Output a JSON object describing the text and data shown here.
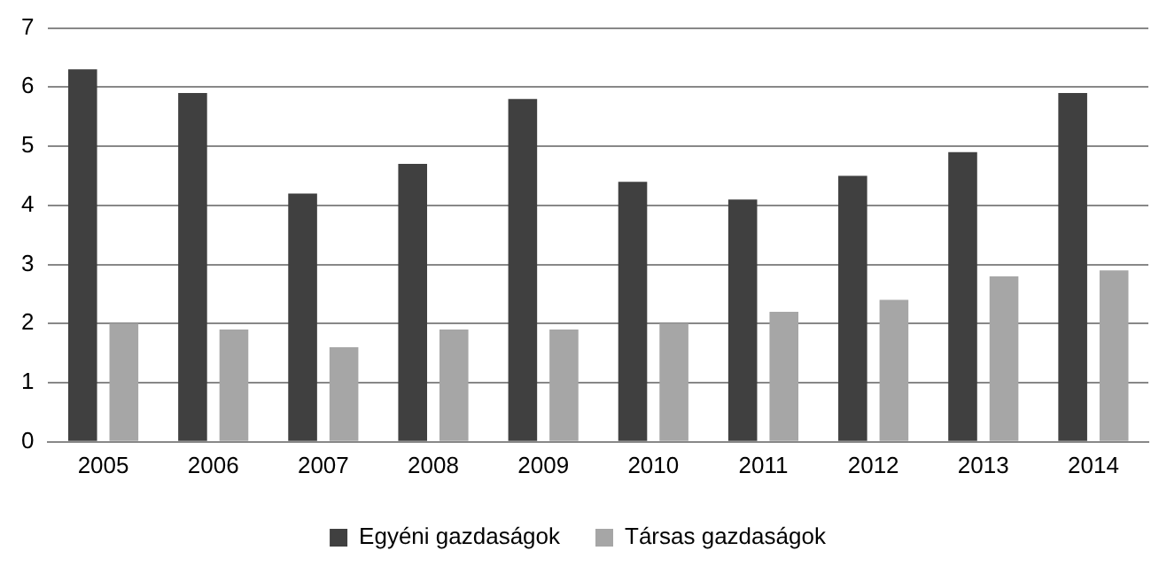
{
  "chart_data": {
    "type": "bar",
    "categories": [
      "2005",
      "2006",
      "2007",
      "2008",
      "2009",
      "2010",
      "2011",
      "2012",
      "2013",
      "2014"
    ],
    "series": [
      {
        "name": "Egyéni gazdaságok",
        "color": "#404040",
        "values": [
          6.3,
          5.9,
          4.2,
          4.7,
          5.8,
          4.4,
          4.1,
          4.5,
          4.9,
          5.9
        ]
      },
      {
        "name": "Társas gazdaságok",
        "color": "#a6a6a6",
        "values": [
          2.0,
          1.9,
          1.6,
          1.9,
          1.9,
          2.0,
          2.2,
          2.4,
          2.8,
          2.9
        ]
      }
    ],
    "ylim": [
      0,
      7
    ],
    "yticks": [
      0,
      1,
      2,
      3,
      4,
      5,
      6,
      7
    ],
    "grid": "y",
    "legend": "bottom"
  }
}
